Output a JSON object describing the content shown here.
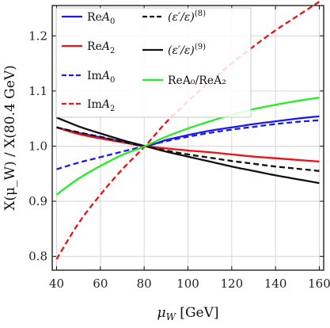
{
  "chart_data": {
    "type": "line",
    "xlabel": "μ_W [GeV]",
    "ylabel": "X(μ_W) / X(80.4 GeV)",
    "xlim": [
      38,
      162
    ],
    "ylim": [
      0.775,
      1.255
    ],
    "xticks": [
      40,
      60,
      80,
      100,
      120,
      140,
      160
    ],
    "yticks": [
      0.8,
      0.9,
      1.0,
      1.1,
      1.2
    ],
    "xtick_labels": [
      "40",
      "60",
      "80",
      "100",
      "120",
      "140",
      "160"
    ],
    "ytick_labels": [
      "0.8",
      "0.9",
      "1.0",
      "1.1",
      "1.2"
    ],
    "grid": true,
    "legend_placement": "top, two columns",
    "x": [
      40,
      50,
      60,
      70,
      80.4,
      90,
      100,
      110,
      120,
      130,
      140,
      150,
      160
    ],
    "series": [
      {
        "name": "ReA0",
        "label_main": "Re",
        "label_sym": "A",
        "label_sub": "0",
        "color": "#1a1aee",
        "dash": "solid",
        "values": [
          1.034,
          1.024,
          1.016,
          1.008,
          1.0,
          1.011,
          1.02,
          1.028,
          1.034,
          1.04,
          1.045,
          1.05,
          1.054
        ]
      },
      {
        "name": "ReA2",
        "label_main": "Re",
        "label_sym": "A",
        "label_sub": "2",
        "color": "#ee1111",
        "dash": "solid",
        "values": [
          1.034,
          1.022,
          1.014,
          1.007,
          1.0,
          0.996,
          0.992,
          0.989,
          0.985,
          0.981,
          0.978,
          0.975,
          0.972
        ]
      },
      {
        "name": "ImA0",
        "label_main": "Im",
        "label_sym": "A",
        "label_sub": "0",
        "color": "#1a1aee",
        "dash": "dashed",
        "values": [
          0.958,
          0.97,
          0.98,
          0.99,
          1.0,
          1.009,
          1.017,
          1.024,
          1.03,
          1.035,
          1.04,
          1.044,
          1.047
        ]
      },
      {
        "name": "ImA2",
        "label_main": "Im",
        "label_sym": "A",
        "label_sub": "2",
        "color": "#ee1111",
        "dash": "dashed",
        "values": [
          0.795,
          0.86,
          0.912,
          0.958,
          1.0,
          1.043,
          1.081,
          1.117,
          1.15,
          1.181,
          1.21,
          1.236,
          1.262
        ]
      },
      {
        "name": "(ε'/ε)(8)",
        "label_main": "(ε′/ε)",
        "label_sup": "(8)",
        "color": "#111111",
        "dash": "dashed",
        "values": [
          1.034,
          1.025,
          1.017,
          1.008,
          1.0,
          0.992,
          0.985,
          0.979,
          0.973,
          0.968,
          0.963,
          0.959,
          0.955
        ]
      },
      {
        "name": "(ε'/ε)(9)",
        "label_main": "(ε′/ε)",
        "label_sup": "(9)",
        "color": "#111111",
        "dash": "solid",
        "values": [
          1.052,
          1.036,
          1.023,
          1.011,
          1.0,
          0.99,
          0.981,
          0.972,
          0.963,
          0.955,
          0.947,
          0.94,
          0.933
        ]
      },
      {
        "name": "ReA0/ReA2",
        "label_main": "ReA₀/ReA₂",
        "color": "#22ee22",
        "dash": "solid",
        "values": [
          0.912,
          0.941,
          0.964,
          0.984,
          1.0,
          1.017,
          1.032,
          1.045,
          1.057,
          1.067,
          1.075,
          1.082,
          1.088
        ]
      }
    ]
  }
}
